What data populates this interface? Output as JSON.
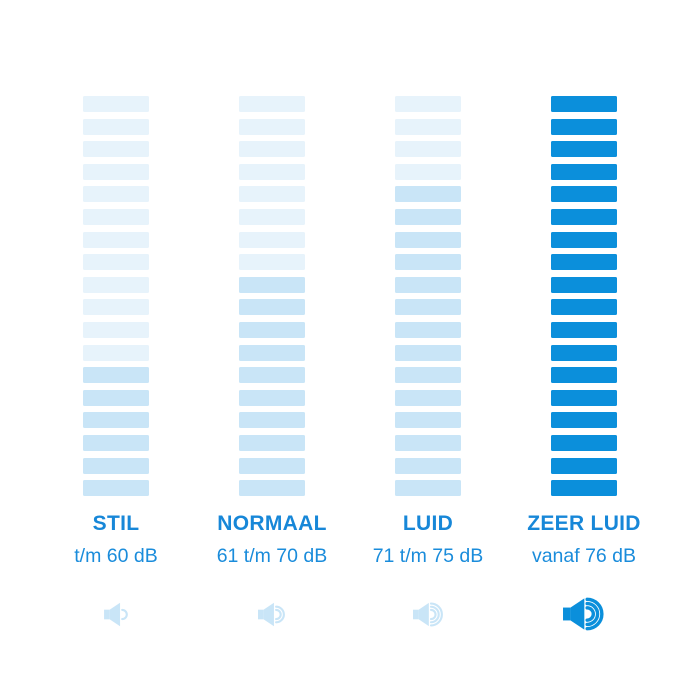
{
  "chart_data": {
    "type": "bar",
    "categories": [
      "STIL",
      "NORMAAL",
      "LUID",
      "ZEER LUID"
    ],
    "series": [
      {
        "name": "filled segments",
        "values": [
          6,
          10,
          14,
          18
        ]
      },
      {
        "name": "total segments",
        "values": [
          18,
          18,
          18,
          18
        ]
      }
    ],
    "tick_labels": [
      "t/m 60 dB",
      "61 t/m 70 dB",
      "71 t/m 75 dB",
      "vanaf 76 dB"
    ],
    "unit": "dB",
    "ylim": [
      0,
      18
    ],
    "grid": "off",
    "legend": "off"
  },
  "columns": [
    {
      "title": "STIL",
      "range": "t/m 60 dB",
      "total_bars": 18,
      "filled_bars": 6,
      "fill_style": "medium",
      "speaker_waves": 1,
      "icon_style": "light"
    },
    {
      "title": "NORMAAL",
      "range": "61 t/m 70 dB",
      "total_bars": 18,
      "filled_bars": 10,
      "fill_style": "medium",
      "speaker_waves": 2,
      "icon_style": "light"
    },
    {
      "title": "LUID",
      "range": "71 t/m 75 dB",
      "total_bars": 18,
      "filled_bars": 14,
      "fill_style": "medium",
      "speaker_waves": 3,
      "icon_style": "light"
    },
    {
      "title": "ZEER LUID",
      "range": "vanaf 76 dB",
      "total_bars": 18,
      "filled_bars": 18,
      "fill_style": "strong",
      "speaker_waves": 3,
      "icon_style": "strong"
    }
  ],
  "colors": {
    "background": "#FFFFFF",
    "bar_light": "#E7F3FB",
    "bar_medium": "#C9E5F7",
    "bar_strong": "#0B8FDB",
    "title_text": "#1787D8",
    "range_text": "#1A8CDB",
    "icon_light": "#C9E5F7",
    "icon_strong": "#0B8FDB"
  }
}
